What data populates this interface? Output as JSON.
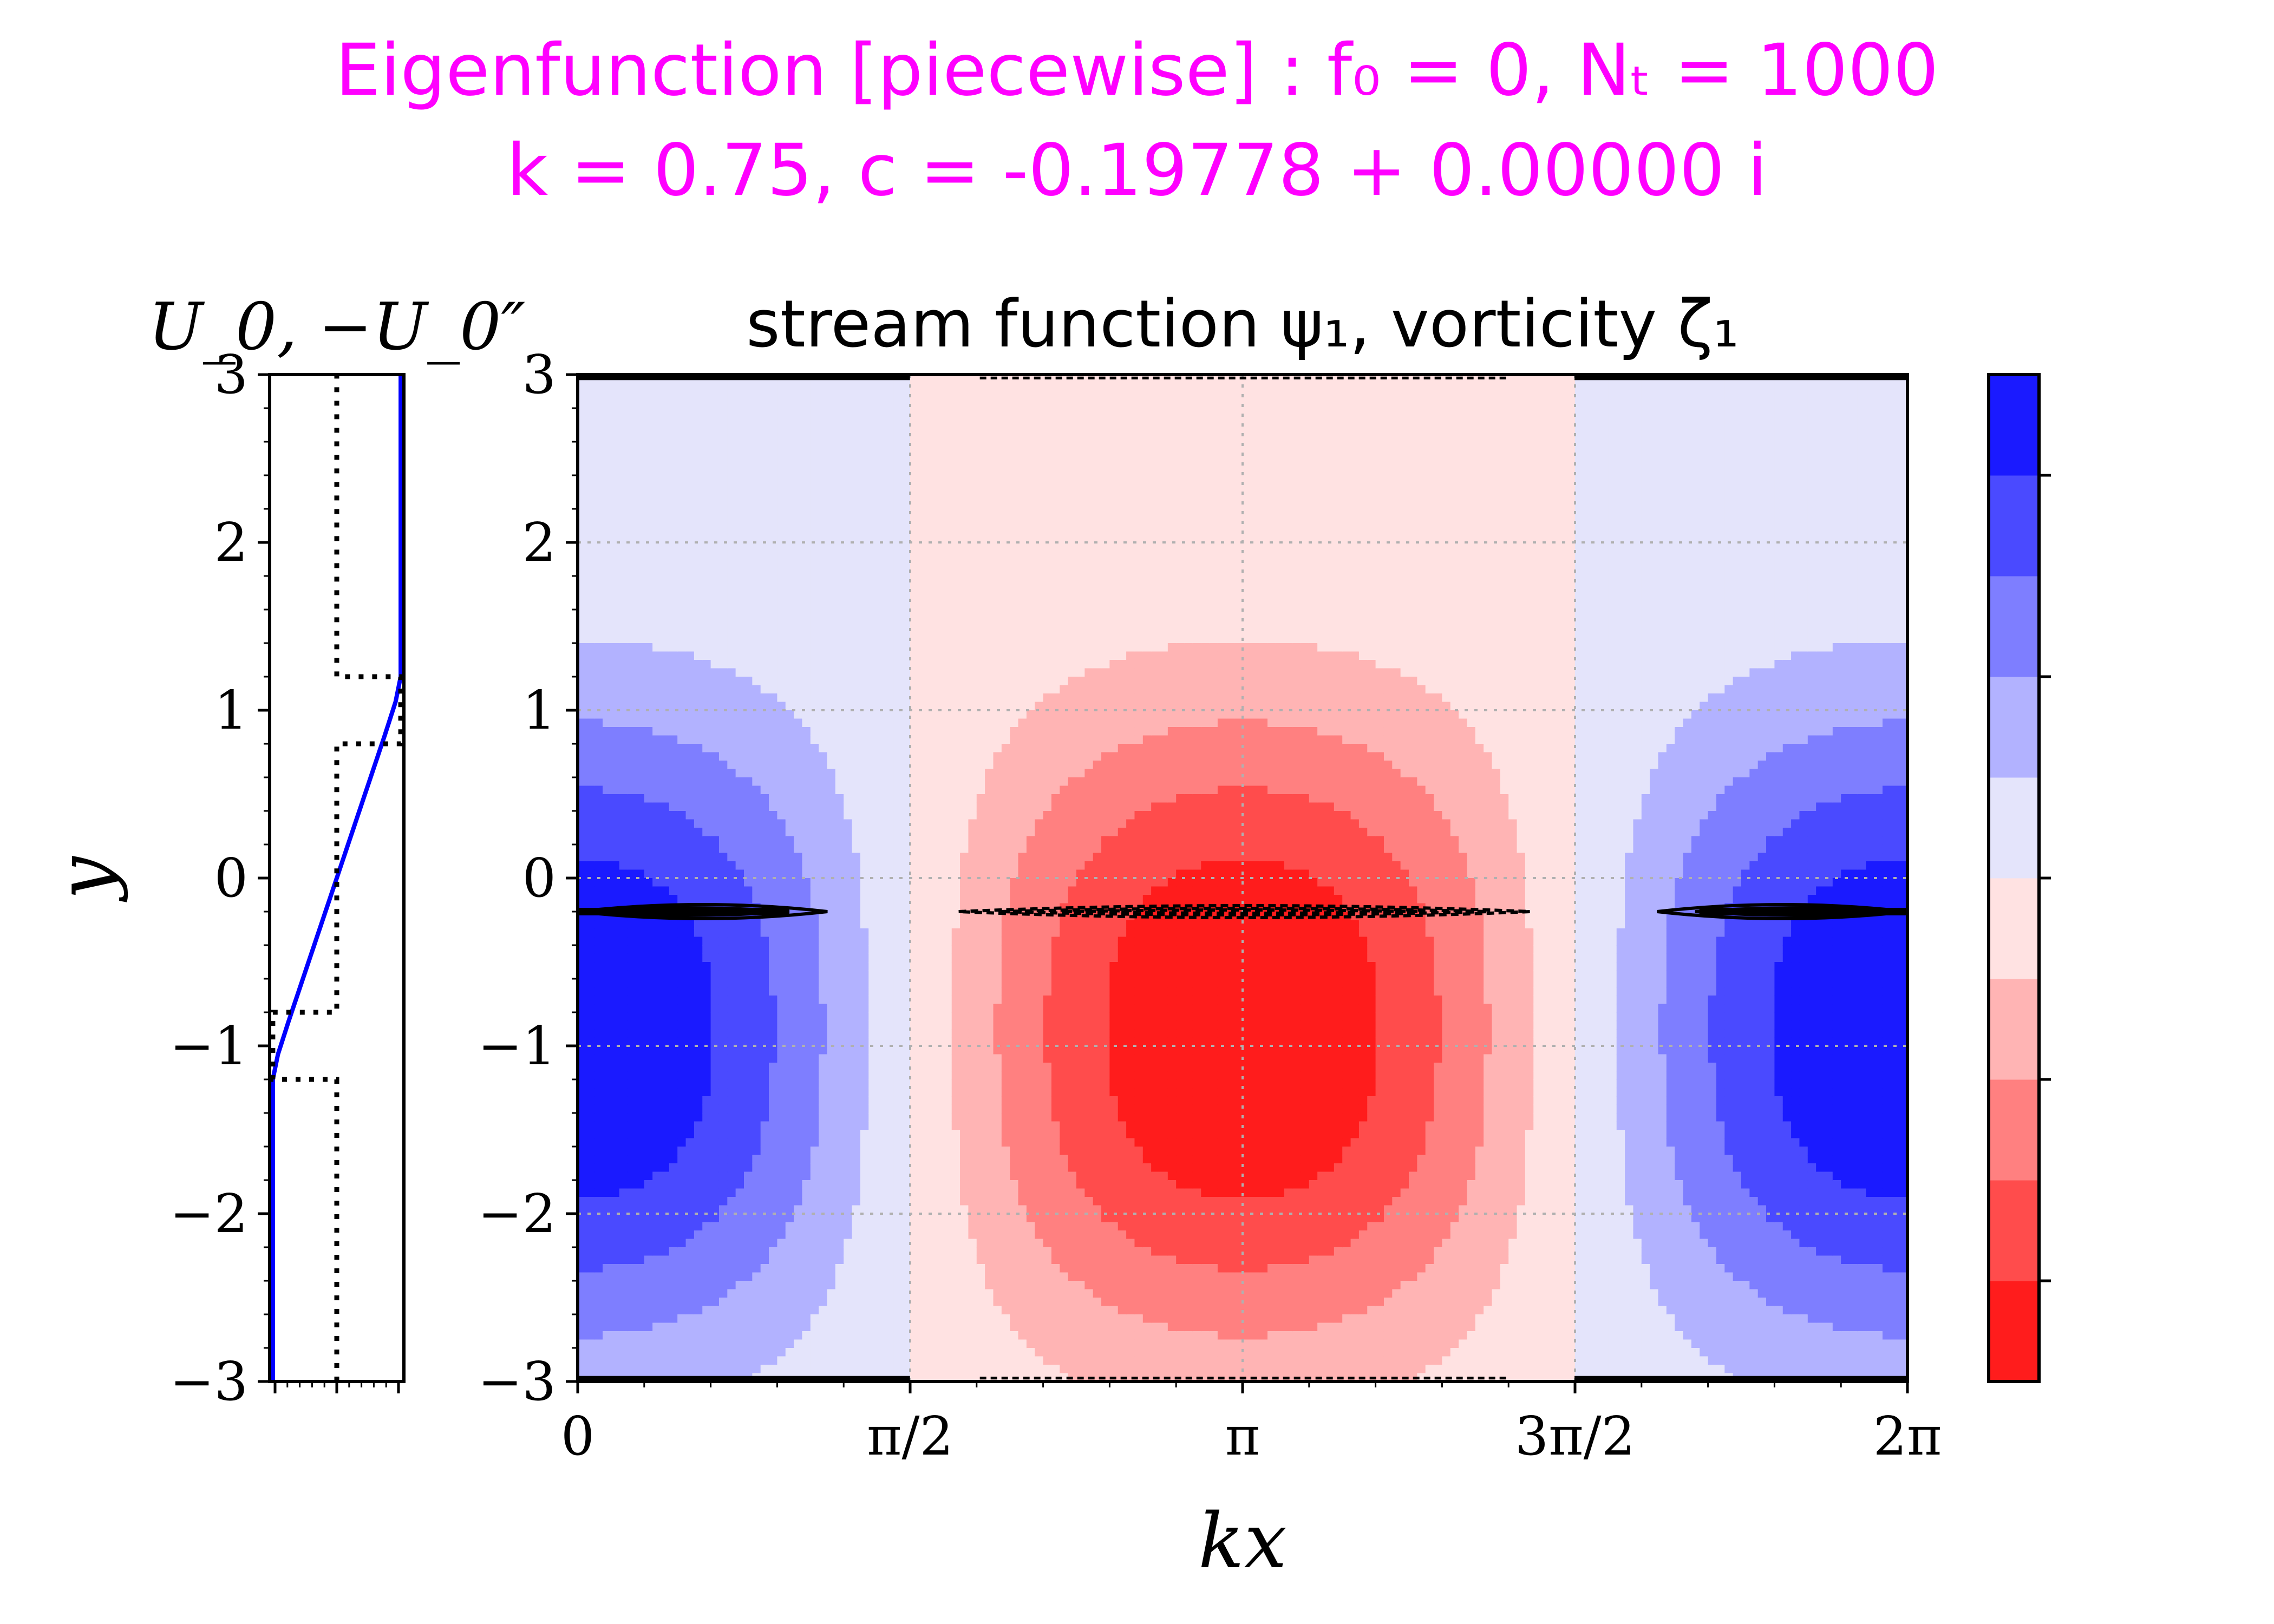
{
  "chart_data": [
    {
      "type": "line",
      "title": "U_0, −U_0″",
      "ylabel": "y",
      "ylim": [
        -3,
        3
      ],
      "yticks": [
        "−3",
        "−2",
        "−1",
        "0",
        "1",
        "2",
        "3"
      ],
      "series": [
        {
          "name": "U_0",
          "color": "#0000ff",
          "style": "solid",
          "x": [
            -1,
            -1,
            -0.92,
            -0.75,
            0,
            0.75,
            0.92,
            1,
            1
          ],
          "y": [
            -3,
            -1.2,
            -1.05,
            -0.85,
            0,
            0.85,
            1.05,
            1.2,
            3
          ]
        },
        {
          "name": "-U_0''",
          "color": "#000000",
          "style": "dotted",
          "x": [
            0,
            0,
            -1,
            -1,
            0,
            0,
            1,
            1,
            0,
            0
          ],
          "y": [
            -3,
            -1.2,
            -1.2,
            -0.8,
            -0.8,
            0.8,
            0.8,
            1.2,
            1.2,
            3
          ]
        }
      ]
    },
    {
      "type": "heatmap",
      "title": "stream function ψ₁, vorticity ζ₁",
      "xlabel": "kx",
      "ylabel": "",
      "xlim": [
        0,
        6.283185
      ],
      "ylim": [
        -3,
        3
      ],
      "xticks": [
        "0",
        "π/2",
        "π",
        "3π/2",
        "2π"
      ],
      "yticks": [
        "−3",
        "−2",
        "−1",
        "0",
        "1",
        "2",
        "3"
      ],
      "k": 0.75,
      "c_real": -0.19778,
      "critical_level_y": -0.2,
      "levels": 10,
      "colormap": [
        "#ff1c1c",
        "#ff4c4c",
        "#ff8080",
        "#ffb4b4",
        "#ffe2e2",
        "#e4e4fb",
        "#b2b2ff",
        "#7e7eff",
        "#4a4aff",
        "#1a1aff"
      ],
      "colorbar_ticks": 5,
      "grid": true
    }
  ],
  "header": {
    "line1": "Eigenfunction [piecewise] : f₀ = 0, Nₜ = 1000",
    "line2": "k = 0.75, c = -0.19778 + 0.00000 i"
  }
}
